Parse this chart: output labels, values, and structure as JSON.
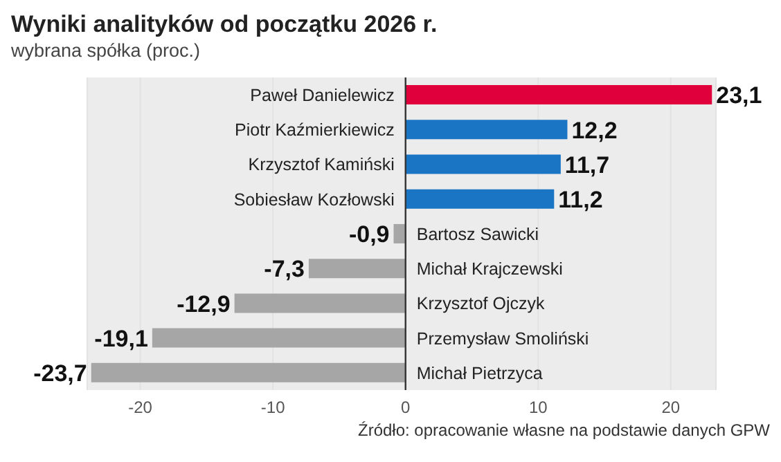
{
  "chart_data": {
    "type": "bar",
    "orientation": "horizontal",
    "title": "Wyniki analityków od początku 2026 r.",
    "subtitle": "wybrana spółka (proc.)",
    "categories": [
      "Paweł Danielewicz",
      "Piotr Kaźmierkiewicz",
      "Krzysztof Kamiński",
      "Sobiesław Kozłowski",
      "Bartosz Sawicki",
      "Michał Krajczewski",
      "Krzysztof Ojczyk",
      "Przemysław Smoliński",
      "Michał Pietrzyca"
    ],
    "values": [
      23.1,
      12.2,
      11.7,
      11.2,
      -0.9,
      -7.3,
      -12.9,
      -19.1,
      -23.7
    ],
    "value_labels": [
      "23,1",
      "12,2",
      "11,7",
      "11,2",
      "-0,9",
      "-7,3",
      "-12,9",
      "-19,1",
      "-23,7"
    ],
    "colors": [
      "#e0003c",
      "#1a75c4",
      "#1a75c4",
      "#1a75c4",
      "#a6a6a6",
      "#a6a6a6",
      "#a6a6a6",
      "#a6a6a6",
      "#a6a6a6"
    ],
    "xlim": [
      -24,
      23.4
    ],
    "xticks": [
      -20,
      -10,
      0,
      10,
      20
    ],
    "grid": "x",
    "annotations": [
      "Źródło: opracowanie własne na podstawie danych GPW"
    ]
  }
}
